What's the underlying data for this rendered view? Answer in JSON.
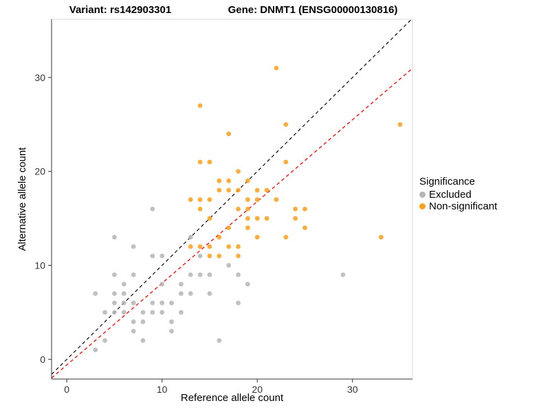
{
  "titles": {
    "variant": "Variant: rs142903301",
    "gene": "Gene: DNMT1 (ENSG00000130816)"
  },
  "axes": {
    "x_label": "Reference allele count",
    "y_label": "Alternative allele count"
  },
  "legend": {
    "title": "Significance",
    "items": [
      {
        "label": "Excluded",
        "color": "#b5b5b5"
      },
      {
        "label": "Non-significant",
        "color": "#f9a11b"
      }
    ]
  },
  "chart_data": {
    "type": "scatter",
    "title": "Variant: rs142903301  Gene: DNMT1 (ENSG00000130816)",
    "xlabel": "Reference allele count",
    "ylabel": "Alternative allele count",
    "xlim": [
      -1.6,
      36.3
    ],
    "ylim": [
      -2.1,
      36.2
    ],
    "x_ticks": [
      0,
      10,
      20,
      30
    ],
    "y_ticks": [
      0,
      10,
      20,
      30
    ],
    "grid": false,
    "legend_position": "right",
    "series": [
      {
        "name": "Excluded",
        "color": "#b5b5b5",
        "points": [
          [
            3,
            7
          ],
          [
            3,
            1
          ],
          [
            4,
            5
          ],
          [
            4,
            2
          ],
          [
            5,
            13
          ],
          [
            5,
            9
          ],
          [
            5,
            7
          ],
          [
            5,
            6
          ],
          [
            5,
            5
          ],
          [
            6,
            8
          ],
          [
            6,
            7
          ],
          [
            6,
            6
          ],
          [
            6,
            5
          ],
          [
            7,
            12
          ],
          [
            7,
            9
          ],
          [
            7,
            6
          ],
          [
            7,
            4
          ],
          [
            7,
            3
          ],
          [
            8,
            5
          ],
          [
            8,
            4
          ],
          [
            8,
            2
          ],
          [
            9,
            16
          ],
          [
            9,
            11
          ],
          [
            9,
            6
          ],
          [
            9,
            5
          ],
          [
            10,
            11
          ],
          [
            10,
            8
          ],
          [
            10,
            6
          ],
          [
            10,
            5
          ],
          [
            11,
            6
          ],
          [
            11,
            4
          ],
          [
            11,
            3
          ],
          [
            12,
            8
          ],
          [
            12,
            7
          ],
          [
            12,
            5
          ],
          [
            13,
            13
          ],
          [
            13,
            9
          ],
          [
            13,
            7
          ],
          [
            14,
            11
          ],
          [
            14,
            9
          ],
          [
            15,
            9
          ],
          [
            15,
            7
          ],
          [
            16,
            2
          ],
          [
            17,
            10
          ],
          [
            18,
            9
          ],
          [
            18,
            6
          ],
          [
            19,
            8
          ],
          [
            29,
            9
          ]
        ]
      },
      {
        "name": "Non-significant",
        "color": "#f9a11b",
        "points": [
          [
            13,
            17
          ],
          [
            13,
            12
          ],
          [
            14,
            27
          ],
          [
            14,
            21
          ],
          [
            14,
            17
          ],
          [
            14,
            16
          ],
          [
            14,
            12
          ],
          [
            15,
            21
          ],
          [
            15,
            17
          ],
          [
            15,
            15
          ],
          [
            15,
            12
          ],
          [
            15,
            11
          ],
          [
            16,
            19
          ],
          [
            16,
            18
          ],
          [
            16,
            13
          ],
          [
            16,
            11
          ],
          [
            17,
            24
          ],
          [
            17,
            19
          ],
          [
            17,
            18
          ],
          [
            17,
            14
          ],
          [
            17,
            12
          ],
          [
            18,
            20
          ],
          [
            18,
            18
          ],
          [
            18,
            16
          ],
          [
            18,
            12
          ],
          [
            18,
            11
          ],
          [
            19,
            19
          ],
          [
            19,
            17
          ],
          [
            19,
            16
          ],
          [
            19,
            15
          ],
          [
            19,
            14
          ],
          [
            20,
            18
          ],
          [
            20,
            17
          ],
          [
            20,
            15
          ],
          [
            20,
            13
          ],
          [
            21,
            18
          ],
          [
            21,
            15
          ],
          [
            22,
            31
          ],
          [
            22,
            17
          ],
          [
            23,
            25
          ],
          [
            23,
            21
          ],
          [
            23,
            13
          ],
          [
            24,
            16
          ],
          [
            24,
            15
          ],
          [
            25,
            16
          ],
          [
            25,
            14
          ],
          [
            33,
            13
          ],
          [
            35,
            25
          ]
        ]
      }
    ],
    "lines": [
      {
        "name": "identity",
        "slope": 1,
        "intercept": 0,
        "color": "#1a1a1a",
        "style": "dashed"
      },
      {
        "name": "fit",
        "slope": 0.87,
        "intercept": -0.6,
        "color": "#ff0000",
        "style": "dashed"
      }
    ]
  }
}
